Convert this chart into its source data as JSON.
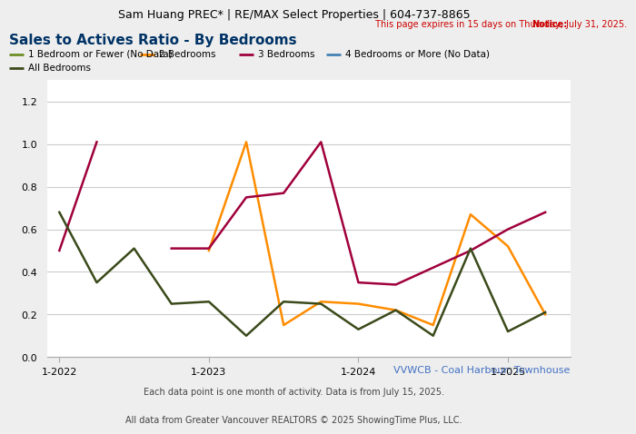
{
  "header": "Sam Huang PREC* | RE/MAX Select Properties | 604-737-8865",
  "notice_prefix": "Notice:",
  "notice_suffix": " This page expires in 15 days on Thursday, July 31, 2025.",
  "title": "Sales to Actives Ratio - By Bedrooms",
  "subtitle_right": "VVWCB - Coal Harbour: Townhouse",
  "footer1": "Each data point is one month of activity. Data is from July 15, 2025.",
  "footer2": "All data from Greater Vancouver REALTORS © 2025 ShowingTime Plus, LLC.",
  "legend_entries": [
    {
      "label": "1 Bedroom or Fewer (No Data)",
      "color": "#6b8e23"
    },
    {
      "label": "2 Bedrooms",
      "color": "#ff8c00"
    },
    {
      "label": "3 Bedrooms",
      "color": "#a0003c"
    },
    {
      "label": "4 Bedrooms or More (No Data)",
      "color": "#4682b4"
    },
    {
      "label": "All Bedrooms",
      "color": "#3b4a1a"
    }
  ],
  "x_tick_labels": [
    "1-2022",
    "1-2023",
    "1-2024",
    "1-2025"
  ],
  "x_tick_positions": [
    0,
    12,
    24,
    36
  ],
  "xlim": [
    -1,
    41
  ],
  "ylim": [
    0.0,
    1.3
  ],
  "yticks": [
    0.0,
    0.2,
    0.4,
    0.6,
    0.8,
    1.0,
    1.2
  ],
  "series": {
    "2_bedrooms": {
      "color": "#ff8c00",
      "x": [
        12,
        15,
        18,
        21,
        24,
        27,
        30,
        33,
        36,
        39
      ],
      "y": [
        0.5,
        1.01,
        0.15,
        0.26,
        0.25,
        0.22,
        0.15,
        0.67,
        0.52,
        0.2
      ]
    },
    "3_bedrooms": {
      "color": "#a0003c",
      "segments": [
        {
          "x": [
            0,
            3
          ],
          "y": [
            0.5,
            1.01
          ]
        },
        {
          "x": [
            9,
            12,
            15,
            18,
            21,
            24,
            27,
            30,
            33,
            36,
            39
          ],
          "y": [
            0.51,
            0.51,
            0.75,
            0.77,
            1.01,
            0.35,
            0.34,
            0.42,
            0.5,
            0.6,
            0.68
          ]
        }
      ]
    },
    "all_bedrooms": {
      "color": "#3b4a1a",
      "x": [
        0,
        3,
        6,
        9,
        12,
        15,
        18,
        21,
        24,
        27,
        30,
        33,
        36,
        39
      ],
      "y": [
        0.68,
        0.35,
        0.51,
        0.25,
        0.26,
        0.1,
        0.26,
        0.25,
        0.13,
        0.22,
        0.1,
        0.51,
        0.12,
        0.21
      ]
    }
  },
  "bg_color": "#eeeeee",
  "plot_bg": "#ffffff",
  "grid_color": "#cccccc",
  "header_fontsize": 9,
  "notice_fontsize": 7,
  "title_fontsize": 11,
  "legend_fontsize": 7.5,
  "tick_fontsize": 8,
  "footer_fontsize": 7,
  "subtitle_fontsize": 8,
  "line_width": 1.8
}
